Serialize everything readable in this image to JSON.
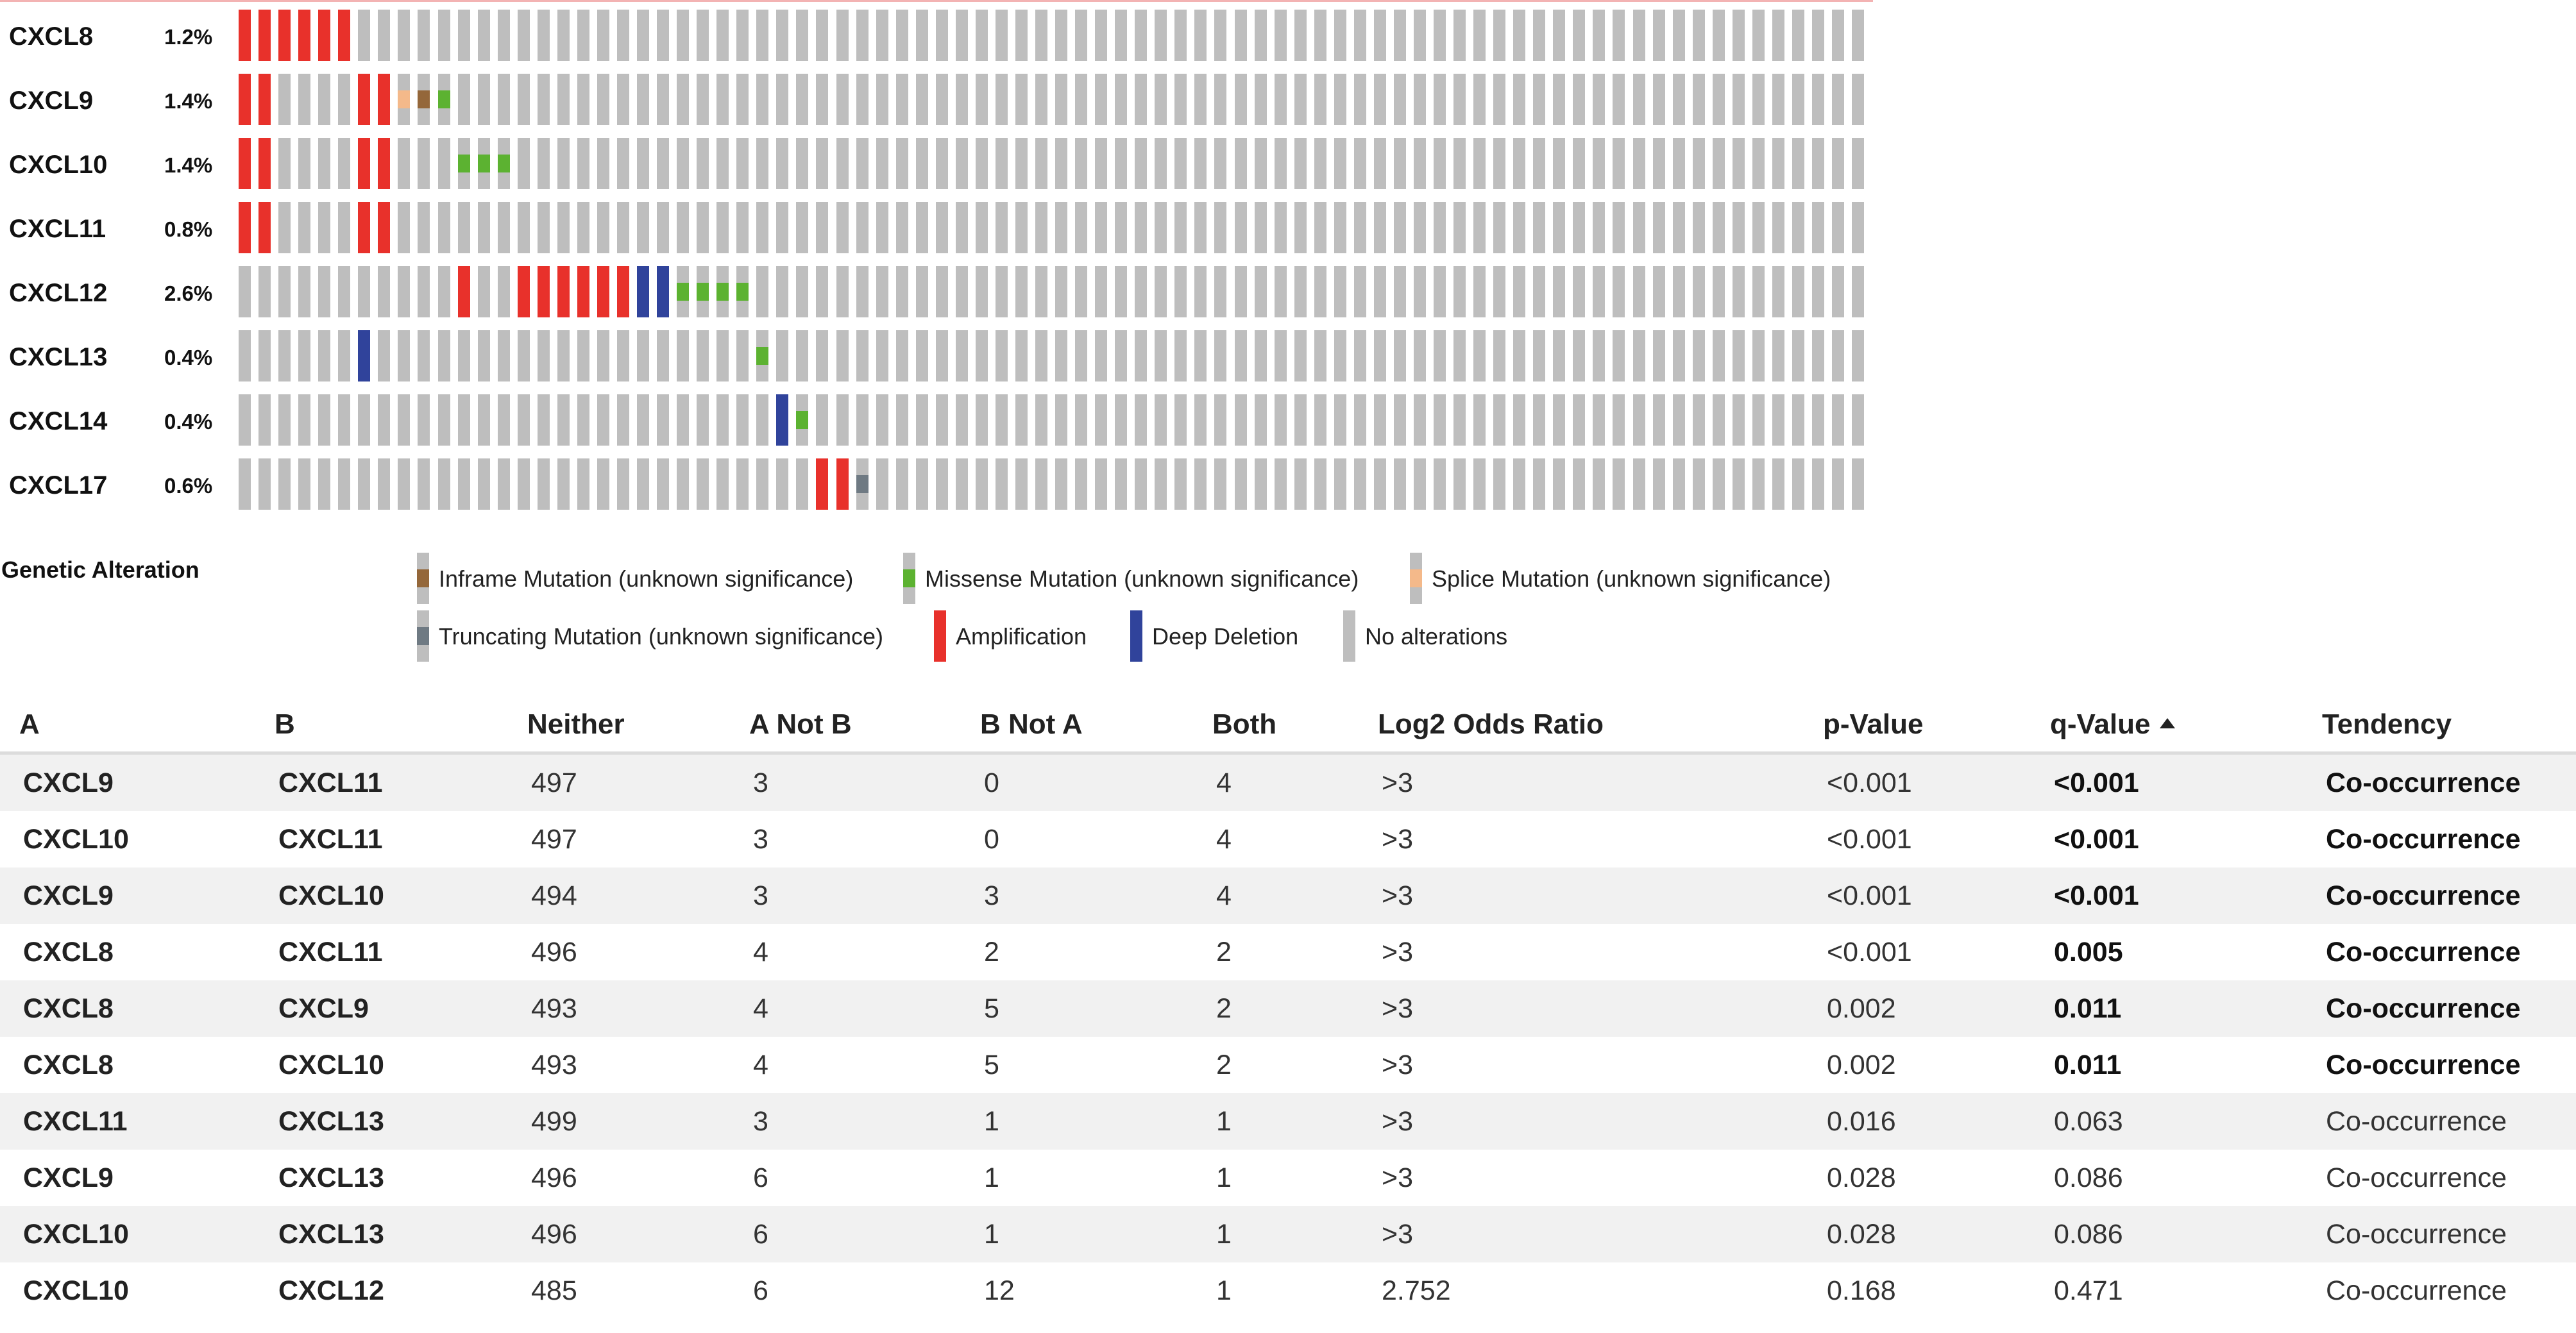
{
  "oncoprint": {
    "genes": [
      {
        "name": "CXCL8",
        "pct": "1.2%",
        "alterations": [
          {
            "i": 0,
            "type": "amp"
          },
          {
            "i": 1,
            "type": "amp"
          },
          {
            "i": 2,
            "type": "amp"
          },
          {
            "i": 3,
            "type": "amp"
          },
          {
            "i": 4,
            "type": "amp"
          },
          {
            "i": 5,
            "type": "amp"
          }
        ]
      },
      {
        "name": "CXCL9",
        "pct": "1.4%",
        "alterations": [
          {
            "i": 0,
            "type": "amp"
          },
          {
            "i": 1,
            "type": "amp"
          },
          {
            "i": 6,
            "type": "amp"
          },
          {
            "i": 7,
            "type": "amp"
          },
          {
            "i": 8,
            "type": "splice"
          },
          {
            "i": 9,
            "type": "inframe"
          },
          {
            "i": 10,
            "type": "missense"
          }
        ]
      },
      {
        "name": "CXCL10",
        "pct": "1.4%",
        "alterations": [
          {
            "i": 0,
            "type": "amp"
          },
          {
            "i": 1,
            "type": "amp"
          },
          {
            "i": 6,
            "type": "amp"
          },
          {
            "i": 7,
            "type": "amp"
          },
          {
            "i": 11,
            "type": "missense"
          },
          {
            "i": 12,
            "type": "missense"
          },
          {
            "i": 13,
            "type": "missense"
          }
        ]
      },
      {
        "name": "CXCL11",
        "pct": "0.8%",
        "alterations": [
          {
            "i": 0,
            "type": "amp"
          },
          {
            "i": 1,
            "type": "amp"
          },
          {
            "i": 6,
            "type": "amp"
          },
          {
            "i": 7,
            "type": "amp"
          }
        ]
      },
      {
        "name": "CXCL12",
        "pct": "2.6%",
        "alterations": [
          {
            "i": 11,
            "type": "amp"
          },
          {
            "i": 14,
            "type": "amp"
          },
          {
            "i": 15,
            "type": "amp"
          },
          {
            "i": 16,
            "type": "amp"
          },
          {
            "i": 17,
            "type": "amp"
          },
          {
            "i": 18,
            "type": "amp"
          },
          {
            "i": 19,
            "type": "amp"
          },
          {
            "i": 20,
            "type": "deep"
          },
          {
            "i": 21,
            "type": "deep"
          },
          {
            "i": 22,
            "type": "missense"
          },
          {
            "i": 23,
            "type": "missense"
          },
          {
            "i": 24,
            "type": "missense"
          },
          {
            "i": 25,
            "type": "missense"
          }
        ]
      },
      {
        "name": "CXCL13",
        "pct": "0.4%",
        "alterations": [
          {
            "i": 6,
            "type": "deep"
          },
          {
            "i": 26,
            "type": "missense"
          }
        ]
      },
      {
        "name": "CXCL14",
        "pct": "0.4%",
        "alterations": [
          {
            "i": 27,
            "type": "deep"
          },
          {
            "i": 28,
            "type": "missense"
          }
        ]
      },
      {
        "name": "CXCL17",
        "pct": "0.6%",
        "alterations": [
          {
            "i": 29,
            "type": "amp"
          },
          {
            "i": 30,
            "type": "amp"
          },
          {
            "i": 31,
            "type": "truncating"
          }
        ]
      }
    ],
    "colors": {
      "none": "#bebebe",
      "amp": "#e8312b",
      "deep": "#30439b",
      "missense": "#5cb231",
      "inframe": "#94673a",
      "splice": "#f4b98a",
      "truncating": "#6f7a83"
    }
  },
  "legend": {
    "title": "Genetic Alteration",
    "items": [
      {
        "label": "Inframe Mutation (unknown significance)",
        "type": "inframe"
      },
      {
        "label": "Missense Mutation (unknown significance)",
        "type": "missense"
      },
      {
        "label": "Splice Mutation (unknown significance)",
        "type": "splice"
      },
      {
        "label": "Truncating Mutation (unknown significance)",
        "type": "truncating"
      },
      {
        "label": "Amplification",
        "type": "amp"
      },
      {
        "label": "Deep Deletion",
        "type": "deep"
      },
      {
        "label": "No alterations",
        "type": "none"
      }
    ]
  },
  "table": {
    "headers": [
      "A",
      "B",
      "Neither",
      "A Not B",
      "B Not A",
      "Both",
      "Log2 Odds Ratio",
      "p-Value",
      "q-Value",
      "Tendency"
    ],
    "sorted_column": "q-Value",
    "rows": [
      {
        "a": "CXCL9",
        "b": "CXCL11",
        "neither": "497",
        "a_not_b": "3",
        "b_not_a": "0",
        "both": "4",
        "log2": ">3",
        "p": "<0.001",
        "q": "<0.001",
        "tendency": "Co-occurrence",
        "significant": true
      },
      {
        "a": "CXCL10",
        "b": "CXCL11",
        "neither": "497",
        "a_not_b": "3",
        "b_not_a": "0",
        "both": "4",
        "log2": ">3",
        "p": "<0.001",
        "q": "<0.001",
        "tendency": "Co-occurrence",
        "significant": true
      },
      {
        "a": "CXCL9",
        "b": "CXCL10",
        "neither": "494",
        "a_not_b": "3",
        "b_not_a": "3",
        "both": "4",
        "log2": ">3",
        "p": "<0.001",
        "q": "<0.001",
        "tendency": "Co-occurrence",
        "significant": true
      },
      {
        "a": "CXCL8",
        "b": "CXCL11",
        "neither": "496",
        "a_not_b": "4",
        "b_not_a": "2",
        "both": "2",
        "log2": ">3",
        "p": "<0.001",
        "q": "0.005",
        "tendency": "Co-occurrence",
        "significant": true
      },
      {
        "a": "CXCL8",
        "b": "CXCL9",
        "neither": "493",
        "a_not_b": "4",
        "b_not_a": "5",
        "both": "2",
        "log2": ">3",
        "p": "0.002",
        "q": "0.011",
        "tendency": "Co-occurrence",
        "significant": true
      },
      {
        "a": "CXCL8",
        "b": "CXCL10",
        "neither": "493",
        "a_not_b": "4",
        "b_not_a": "5",
        "both": "2",
        "log2": ">3",
        "p": "0.002",
        "q": "0.011",
        "tendency": "Co-occurrence",
        "significant": true
      },
      {
        "a": "CXCL11",
        "b": "CXCL13",
        "neither": "499",
        "a_not_b": "3",
        "b_not_a": "1",
        "both": "1",
        "log2": ">3",
        "p": "0.016",
        "q": "0.063",
        "tendency": "Co-occurrence",
        "significant": false
      },
      {
        "a": "CXCL9",
        "b": "CXCL13",
        "neither": "496",
        "a_not_b": "6",
        "b_not_a": "1",
        "both": "1",
        "log2": ">3",
        "p": "0.028",
        "q": "0.086",
        "tendency": "Co-occurrence",
        "significant": false
      },
      {
        "a": "CXCL10",
        "b": "CXCL13",
        "neither": "496",
        "a_not_b": "6",
        "b_not_a": "1",
        "both": "1",
        "log2": ">3",
        "p": "0.028",
        "q": "0.086",
        "tendency": "Co-occurrence",
        "significant": false
      },
      {
        "a": "CXCL10",
        "b": "CXCL12",
        "neither": "485",
        "a_not_b": "6",
        "b_not_a": "12",
        "both": "1",
        "log2": "2.752",
        "p": "0.168",
        "q": "0.471",
        "tendency": "Co-occurrence",
        "significant": false
      }
    ]
  }
}
